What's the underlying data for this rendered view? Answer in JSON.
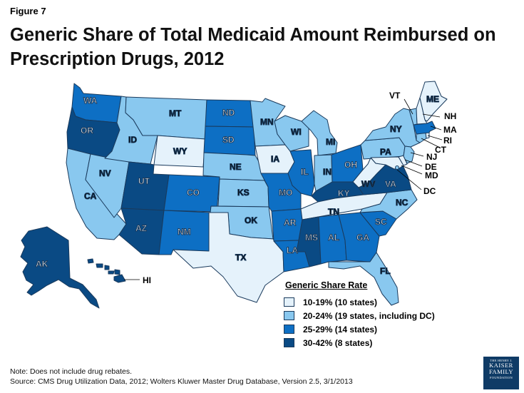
{
  "figure_label": "Figure 7",
  "title": "Generic Share of Total Medicaid Amount Reimbursed on Prescription Drugs, 2012",
  "colors": {
    "tier1": "#e5f2fb",
    "tier2": "#89c8ef",
    "tier3": "#0d6fc4",
    "tier4": "#0a4a84",
    "border": "#1a3a5c"
  },
  "legend": {
    "title": "Generic Share Rate",
    "items": [
      {
        "label": "10-19% (10 states)",
        "tier": "tier1"
      },
      {
        "label": "20-24%  (19 states, including DC)",
        "tier": "tier2"
      },
      {
        "label": "25-29%  (14 states)",
        "tier": "tier3"
      },
      {
        "label": "30-42% (8 states)",
        "tier": "tier4"
      }
    ]
  },
  "states": {
    "WA": "tier3",
    "OR": "tier4",
    "CA": "tier2",
    "NV": "tier2",
    "ID": "tier2",
    "MT": "tier2",
    "WY": "tier1",
    "UT": "tier4",
    "AZ": "tier4",
    "CO": "tier3",
    "NM": "tier3",
    "ND": "tier3",
    "SD": "tier3",
    "NE": "tier2",
    "KS": "tier2",
    "OK": "tier2",
    "TX": "tier1",
    "MN": "tier2",
    "IA": "tier1",
    "MO": "tier3",
    "AR": "tier3",
    "LA": "tier3",
    "WI": "tier2",
    "IL": "tier3",
    "MS": "tier4",
    "MI": "tier2",
    "IN": "tier2",
    "KY": "tier4",
    "TN": "tier1",
    "AL": "tier3",
    "OH": "tier3",
    "GA": "tier3",
    "FL": "tier2",
    "SC": "tier3",
    "NC": "tier2",
    "VA": "tier4",
    "WV": "tier1",
    "PA": "tier2",
    "NY": "tier2",
    "VT": "tier2",
    "NH": "tier1",
    "ME": "tier1",
    "MA": "tier3",
    "RI": "tier1",
    "CT": "tier2",
    "NJ": "tier2",
    "DE": "tier1",
    "MD": "tier1",
    "DC": "tier2",
    "AK": "tier4",
    "HI": "tier4"
  },
  "callouts": [
    "VT",
    "NH",
    "MA",
    "RI",
    "CT",
    "NJ",
    "DE",
    "MD",
    "DC",
    "HI"
  ],
  "note": "Note: Does not include drug rebates.",
  "source": "Source: CMS Drug Utilization Data, 2012; Wolters Kluwer Master Drug Database, Version 2.5, 3/1/2013",
  "logo": {
    "line1": "THE HENRY J.",
    "line2": "KAISER",
    "line3": "FAMILY",
    "line4": "FOUNDATION"
  }
}
